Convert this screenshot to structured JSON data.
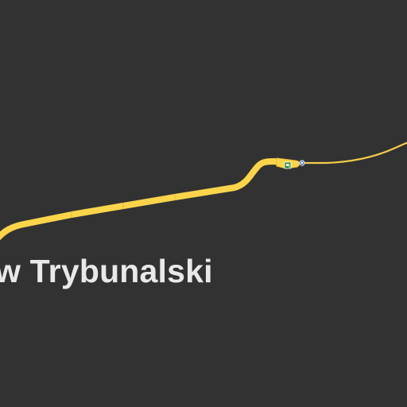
{
  "map": {
    "place_label": "w Trybunalski",
    "colors": {
      "background": "#323232",
      "major_road": "#fdd54a",
      "road_casing": "#e8b937",
      "minor_road": "#f4cc48",
      "label": "#e9e9e9",
      "fuel_icon": "#2e8b3e",
      "bus_stop_icon": "#3b6fd1"
    },
    "icons": [
      "fuel-station-icon",
      "bus-stop-icon"
    ]
  }
}
